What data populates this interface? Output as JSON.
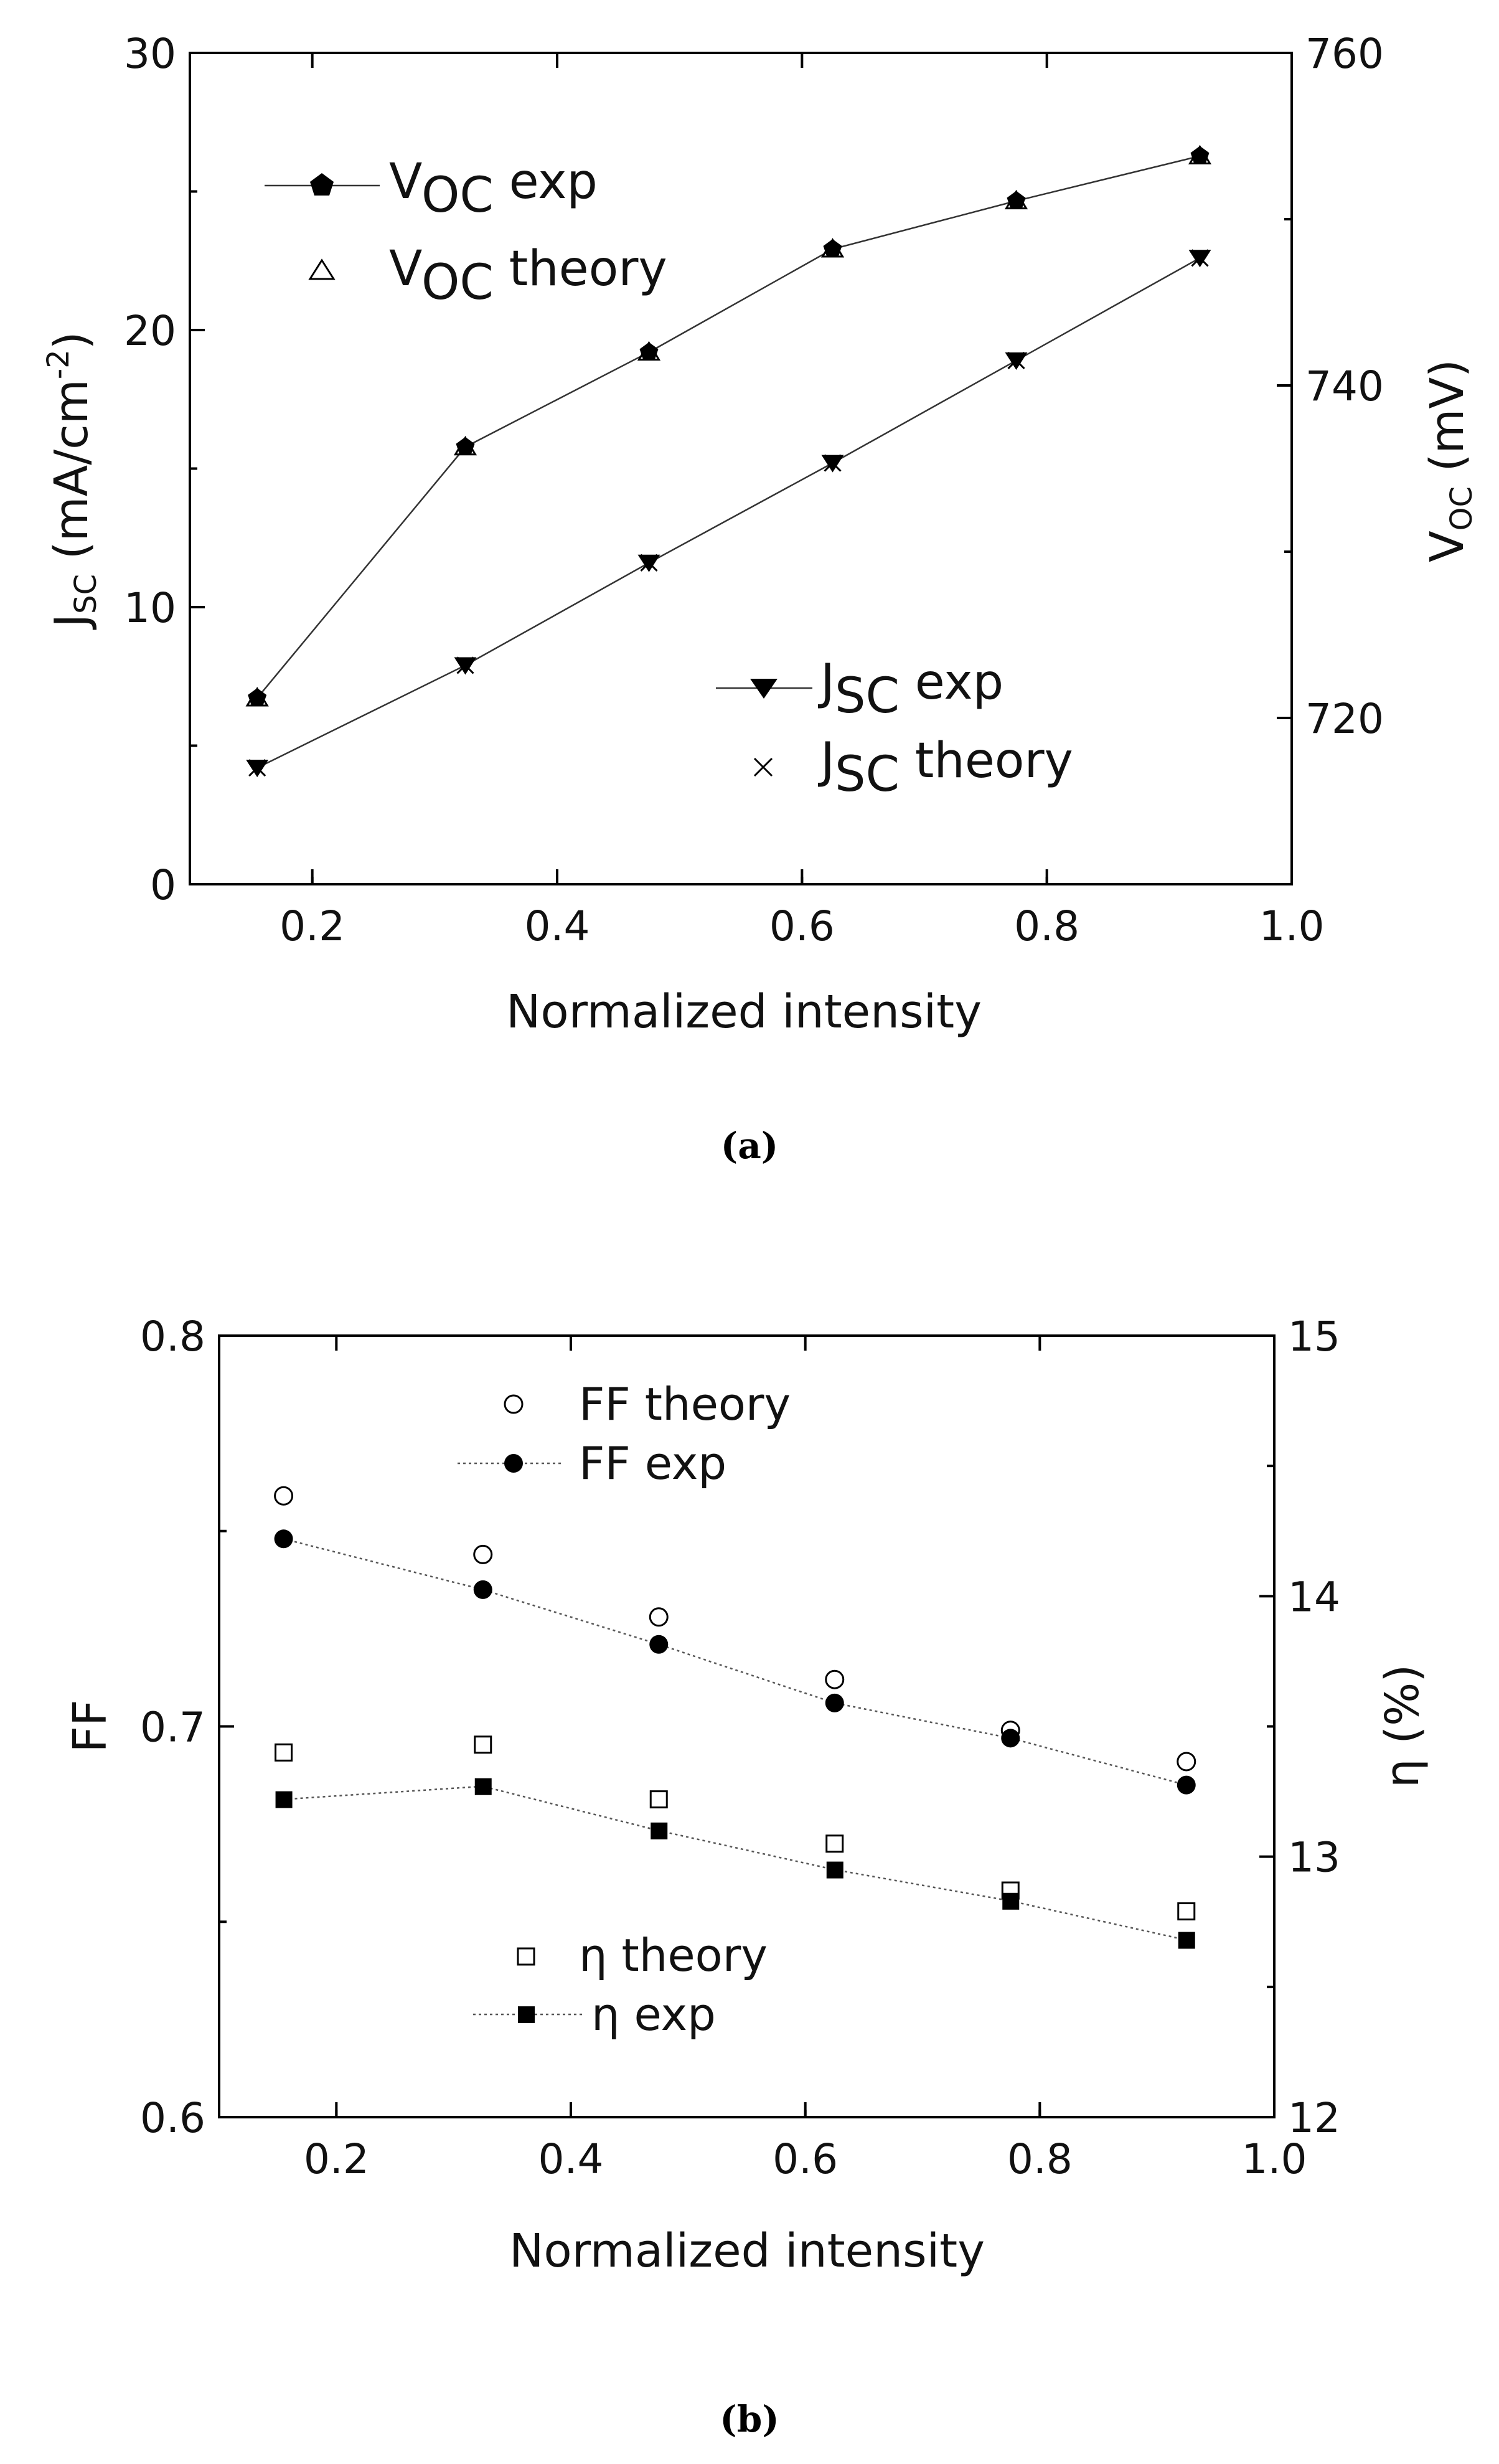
{
  "chart_data": [
    {
      "id": "a",
      "caption": "(a)",
      "type": "line",
      "xlabel": "Normalized intensity",
      "xlim": [
        0.1,
        1.0
      ],
      "xticks": [
        "0.2",
        "0.4",
        "0.6",
        "0.8",
        "1.0"
      ],
      "ylabel_left": {
        "main": "J",
        "sub": "SC",
        "rest": "  (mA/cm",
        "sup": "-2",
        "end": ")"
      },
      "ylim_left": [
        0,
        30
      ],
      "yticks_left": [
        "0",
        "10",
        "20",
        "30"
      ],
      "ylabel_right": {
        "main": "V",
        "sub": "OC",
        "rest": "  (mV)"
      },
      "ylim_right": [
        710,
        760
      ],
      "yticks_right": [
        "720",
        "740",
        "760"
      ],
      "x": [
        0.155,
        0.325,
        0.475,
        0.625,
        0.775,
        0.925
      ],
      "series": [
        {
          "name": "VOC exp",
          "legend_main": "V",
          "legend_sub": "OC",
          "legend_rest": " exp",
          "axis": "right",
          "marker": "pentagon-filled",
          "line": "solid",
          "values": [
            721.2,
            736.3,
            742.0,
            748.2,
            751.1,
            753.8
          ]
        },
        {
          "name": "VOC theory",
          "legend_main": "V",
          "legend_sub": "OC",
          "legend_rest": " theory",
          "axis": "right",
          "marker": "triangle-open",
          "line": "none",
          "values": [
            721.2,
            736.3,
            742.0,
            748.2,
            751.1,
            753.8
          ]
        },
        {
          "name": "JSC exp",
          "legend_main": "J",
          "legend_sub": "SC",
          "legend_rest": " exp",
          "axis": "left",
          "marker": "triangle-down-filled",
          "line": "solid",
          "values": [
            4.2,
            7.9,
            11.6,
            15.2,
            18.9,
            22.6
          ]
        },
        {
          "name": "JSC theory",
          "legend_main": "J",
          "legend_sub": "SC",
          "legend_rest": " theory",
          "axis": "left",
          "marker": "x",
          "line": "none",
          "values": [
            4.2,
            7.9,
            11.6,
            15.2,
            18.9,
            22.6
          ]
        }
      ]
    },
    {
      "id": "b",
      "caption": "(b)",
      "type": "line",
      "xlabel": "Normalized intensity",
      "xlim": [
        0.1,
        1.0
      ],
      "xticks": [
        "0.2",
        "0.4",
        "0.6",
        "0.8",
        "1.0"
      ],
      "ylabel_left": "FF",
      "ylim_left": [
        0.6,
        0.8
      ],
      "yticks_left": [
        "0.6",
        "0.7",
        "0.8"
      ],
      "ylabel_right": "η (%)",
      "ylim_right": [
        12,
        15
      ],
      "yticks_right": [
        "12",
        "13",
        "14",
        "15"
      ],
      "x": [
        0.155,
        0.325,
        0.475,
        0.625,
        0.775,
        0.925
      ],
      "series": [
        {
          "name": "FF theory",
          "axis": "left",
          "marker": "circle-open",
          "line": "none",
          "values": [
            0.759,
            0.744,
            0.728,
            0.712,
            0.699,
            0.691
          ]
        },
        {
          "name": "FF exp",
          "axis": "left",
          "marker": "circle-filled",
          "line": "dotted",
          "values": [
            0.748,
            0.735,
            0.721,
            0.706,
            0.697,
            0.685
          ]
        },
        {
          "name": "η theory",
          "axis": "right",
          "marker": "square-open",
          "line": "none",
          "values": [
            13.4,
            13.43,
            13.22,
            13.05,
            12.87,
            12.79
          ]
        },
        {
          "name": "η exp",
          "axis": "right",
          "marker": "square-filled",
          "line": "dashed",
          "values": [
            13.22,
            13.27,
            13.1,
            12.95,
            12.83,
            12.68
          ]
        }
      ]
    }
  ]
}
